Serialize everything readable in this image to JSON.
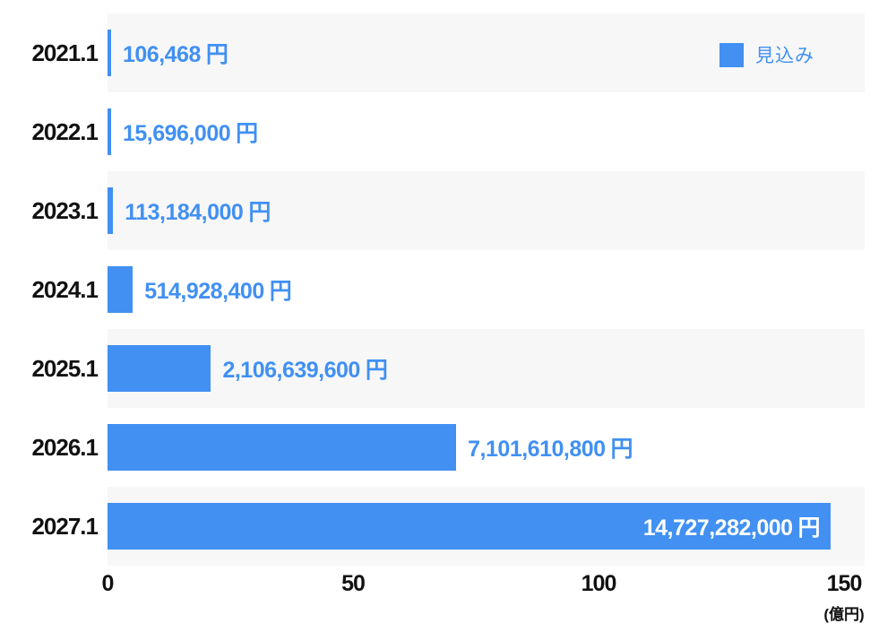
{
  "chart_data": {
    "type": "bar",
    "orientation": "horizontal",
    "categories": [
      "2021.1",
      "2022.1",
      "2023.1",
      "2024.1",
      "2025.1",
      "2026.1",
      "2027.1"
    ],
    "series": [
      {
        "name": "見込み",
        "values": [
          106468,
          15696000,
          113184000,
          514928400,
          2106639600,
          7101610800,
          14727282000
        ]
      }
    ],
    "value_labels": [
      "106,468",
      "15,696,000",
      "113,184,000",
      "514,928,400",
      "2,106,639,600",
      "7,101,610,800",
      "14,727,282,000"
    ],
    "value_unit": "円",
    "x_tick_labels": [
      "0",
      "50",
      "100",
      "150"
    ],
    "x_ticks": [
      0,
      50,
      100,
      150
    ],
    "xlim": [
      0,
      150
    ],
    "x_axis_unit_label": "(億円)",
    "x_axis_unit_divisor": 100000000,
    "grid": false,
    "legend_position": "top-right",
    "row_stripes": true,
    "last_value_label_inside_bar": true
  },
  "legend": {
    "label": "見込み"
  },
  "colors": {
    "bar": "#4190f2",
    "value_label": "#4190f2",
    "value_label_inside": "#ffffff",
    "stripe": "#f7f7f8",
    "category_label": "#111111",
    "axis_label": "#111111"
  }
}
